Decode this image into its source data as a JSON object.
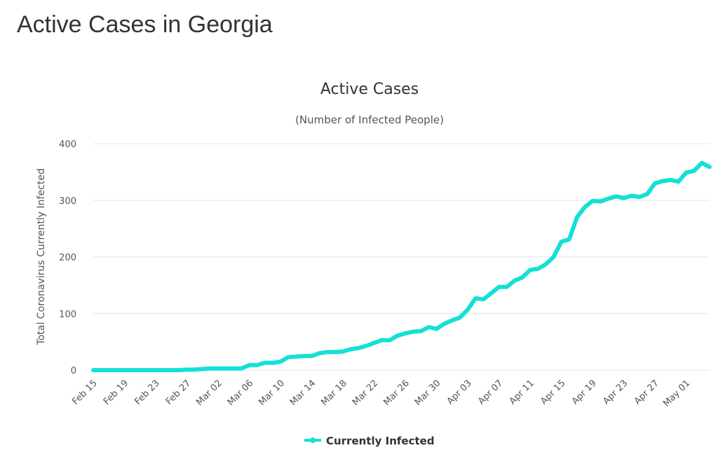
{
  "page": {
    "title": "Active Cases in Georgia"
  },
  "colors": {
    "series": "#14e0d6",
    "grid": "#e6e6e6",
    "text": "#333333"
  },
  "chart_data": {
    "type": "line",
    "title": "Active Cases",
    "subtitle": "(Number of Infected People)",
    "xlabel": "",
    "ylabel": "Total Coronavirus Currently Infected",
    "ylim": [
      0,
      400
    ],
    "yticks": [
      0,
      100,
      200,
      300,
      400
    ],
    "grid": true,
    "legend_position": "bottom-center",
    "x": [
      "Feb 15",
      "Feb 16",
      "Feb 17",
      "Feb 18",
      "Feb 19",
      "Feb 20",
      "Feb 21",
      "Feb 22",
      "Feb 23",
      "Feb 24",
      "Feb 25",
      "Feb 26",
      "Feb 27",
      "Feb 28",
      "Feb 29",
      "Mar 01",
      "Mar 02",
      "Mar 03",
      "Mar 04",
      "Mar 05",
      "Mar 06",
      "Mar 07",
      "Mar 08",
      "Mar 09",
      "Mar 10",
      "Mar 11",
      "Mar 12",
      "Mar 13",
      "Mar 14",
      "Mar 15",
      "Mar 16",
      "Mar 17",
      "Mar 18",
      "Mar 19",
      "Mar 20",
      "Mar 21",
      "Mar 22",
      "Mar 23",
      "Mar 24",
      "Mar 25",
      "Mar 26",
      "Mar 27",
      "Mar 28",
      "Mar 29",
      "Mar 30",
      "Mar 31",
      "Apr 01",
      "Apr 02",
      "Apr 03",
      "Apr 04",
      "Apr 05",
      "Apr 06",
      "Apr 07",
      "Apr 08",
      "Apr 09",
      "Apr 10",
      "Apr 11",
      "Apr 12",
      "Apr 13",
      "Apr 14",
      "Apr 15",
      "Apr 16",
      "Apr 17",
      "Apr 18",
      "Apr 19",
      "Apr 20",
      "Apr 21",
      "Apr 22",
      "Apr 23",
      "Apr 24",
      "Apr 25",
      "Apr 26",
      "Apr 27",
      "Apr 28",
      "Apr 29",
      "Apr 30",
      "May 01",
      "May 02",
      "May 03",
      "May 04"
    ],
    "xtick_labels": [
      "Feb 15",
      "Feb 19",
      "Feb 23",
      "Feb 27",
      "Mar 02",
      "Mar 06",
      "Mar 10",
      "Mar 14",
      "Mar 18",
      "Mar 22",
      "Mar 26",
      "Mar 30",
      "Apr 03",
      "Apr 07",
      "Apr 11",
      "Apr 15",
      "Apr 19",
      "Apr 23",
      "Apr 27",
      "May 01"
    ],
    "series": [
      {
        "name": "Currently Infected",
        "values": [
          0,
          0,
          0,
          0,
          0,
          0,
          0,
          0,
          0,
          0,
          0,
          0,
          1,
          1,
          2,
          3,
          3,
          3,
          3,
          3,
          9,
          9,
          13,
          13,
          15,
          23,
          24,
          25,
          25,
          30,
          32,
          32,
          33,
          37,
          39,
          43,
          48,
          53,
          53,
          61,
          65,
          68,
          69,
          76,
          73,
          82,
          88,
          93,
          107,
          127,
          125,
          136,
          147,
          147,
          158,
          164,
          177,
          179,
          187,
          200,
          227,
          231,
          270,
          288,
          299,
          298,
          303,
          307,
          304,
          308,
          306,
          311,
          330,
          334,
          336,
          333,
          349,
          352,
          366,
          359
        ]
      }
    ]
  }
}
